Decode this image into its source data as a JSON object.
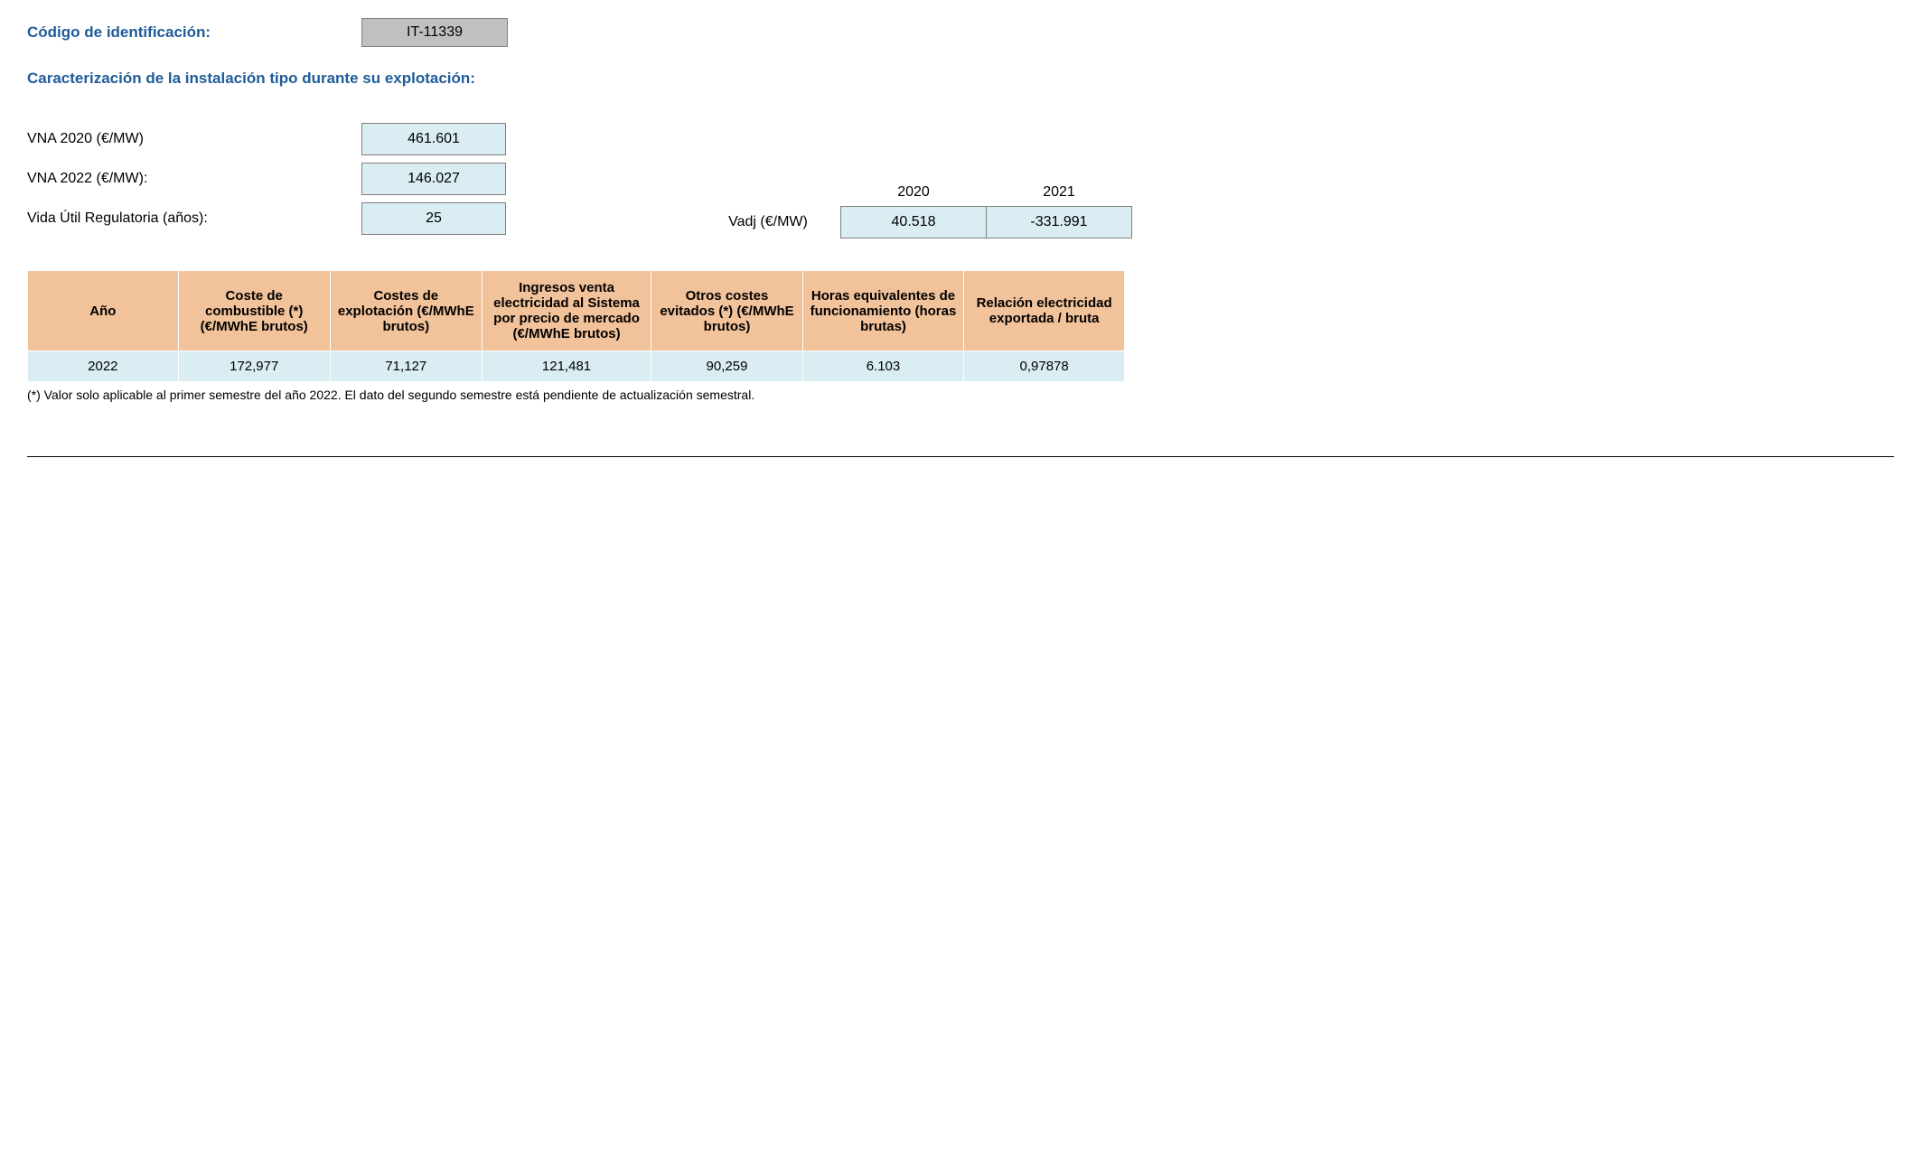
{
  "header": {
    "id_label": "Código de identificación:",
    "id_value": "IT-11339"
  },
  "section_title": "Caracterización de la instalación tipo durante su explotación:",
  "params": {
    "vna2020_label": "VNA 2020 (€/MW)",
    "vna2020_value": "461.601",
    "vna2022_label": "VNA 2022 (€/MW):",
    "vna2022_value": "146.027",
    "vida_label": "Vida Útil Regulatoria (años):",
    "vida_value": "25"
  },
  "vadj": {
    "label": "Vadj (€/MW)",
    "year1": "2020",
    "year2": "2021",
    "val1": "40.518",
    "val2": "-331.991"
  },
  "main_table": {
    "columns": [
      "Año",
      "Coste de combustible (*) (€/MWhE brutos)",
      "Costes de explotación (€/MWhE brutos)",
      "Ingresos venta electricidad al Sistema por precio de mercado (€/MWhE brutos)",
      "Otros costes evitados (*) (€/MWhE brutos)",
      "Horas equivalentes de funcionamiento (horas brutas)",
      "Relación electricidad exportada / bruta"
    ],
    "row": {
      "c0": "2022",
      "c1": "172,977",
      "c2": "71,127",
      "c3": "121,481",
      "c4": "90,259",
      "c5": "6.103",
      "c6": "0,97878"
    },
    "col_widths": [
      "170px",
      "170px",
      "170px",
      "190px",
      "170px",
      "180px",
      "180px"
    ],
    "header_bg": "#f2c29a",
    "row_bg": "#d9edf2"
  },
  "footnote": "(*) Valor solo aplicable al primer semestre del año 2022. El dato del segundo semestre está pendiente de actualización semestral."
}
